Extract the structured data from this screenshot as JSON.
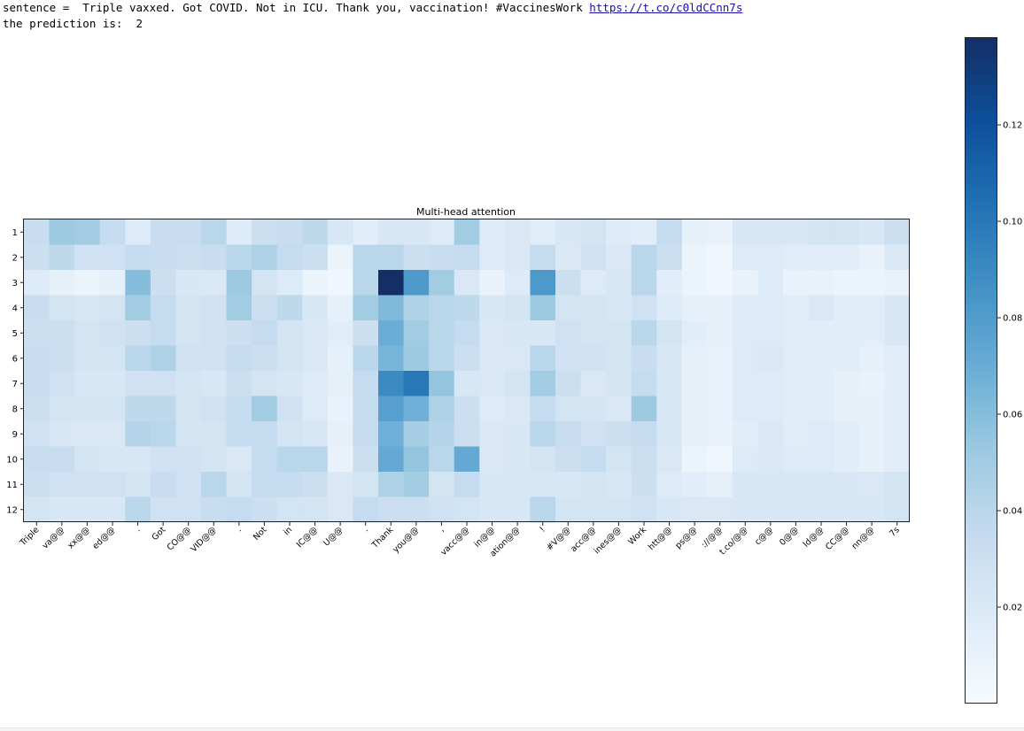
{
  "output": {
    "sentence_prefix": "sentence =  Triple vaxxed. Got COVID. Not in ICU. Thank you, vaccination! #VaccinesWork ",
    "sentence_link": "https://t.co/c0ldCCnn7s",
    "prediction_line": "the prediction is:  2"
  },
  "chart_data": {
    "type": "heatmap",
    "title": "Multi-head attention",
    "colormap": "Blues",
    "x_tokens": [
      "Triple",
      "va@@",
      "xx@@",
      "ed@@",
      ".",
      "Got",
      "CO@@",
      "VID@@",
      ".",
      "Not",
      "in",
      "IC@@",
      "U@@",
      ".",
      "Thank",
      "you@@",
      ",",
      "vacc@@",
      "in@@",
      "ation@@",
      "!",
      "#V@@",
      "acc@@",
      "ines@@",
      "Work",
      "htt@@",
      "ps@@",
      "://@@",
      "t.co/@@",
      "c@@",
      "0@@",
      "ld@@",
      "CC@@",
      "nn@@",
      "7s"
    ],
    "y_labels": [
      "1",
      "2",
      "3",
      "4",
      "5",
      "6",
      "7",
      "8",
      "9",
      "10",
      "11",
      "12"
    ],
    "vmin": 0.0,
    "vmax": 0.138,
    "colorbar_ticks": [
      0.02,
      0.04,
      0.06,
      0.08,
      0.1,
      0.12
    ],
    "colorbar_tick_labels": [
      "0.02",
      "0.04",
      "0.06",
      "0.08",
      "0.10",
      "0.12"
    ],
    "values": [
      [
        0.032,
        0.052,
        0.05,
        0.035,
        0.018,
        0.032,
        0.032,
        0.04,
        0.018,
        0.03,
        0.032,
        0.038,
        0.022,
        0.015,
        0.022,
        0.022,
        0.018,
        0.05,
        0.018,
        0.02,
        0.015,
        0.022,
        0.025,
        0.018,
        0.015,
        0.035,
        0.012,
        0.01,
        0.022,
        0.022,
        0.022,
        0.025,
        0.025,
        0.022,
        0.03
      ],
      [
        0.03,
        0.038,
        0.028,
        0.028,
        0.035,
        0.032,
        0.03,
        0.032,
        0.04,
        0.045,
        0.035,
        0.03,
        0.008,
        0.04,
        0.04,
        0.03,
        0.032,
        0.035,
        0.018,
        0.02,
        0.035,
        0.02,
        0.028,
        0.02,
        0.04,
        0.03,
        0.008,
        0.005,
        0.018,
        0.018,
        0.015,
        0.015,
        0.015,
        0.01,
        0.02
      ],
      [
        0.018,
        0.012,
        0.008,
        0.012,
        0.06,
        0.03,
        0.022,
        0.02,
        0.052,
        0.025,
        0.018,
        0.008,
        0.005,
        0.04,
        0.138,
        0.082,
        0.05,
        0.02,
        0.01,
        0.018,
        0.082,
        0.03,
        0.018,
        0.022,
        0.04,
        0.015,
        0.008,
        0.005,
        0.01,
        0.018,
        0.01,
        0.01,
        0.008,
        0.008,
        0.01
      ],
      [
        0.032,
        0.025,
        0.022,
        0.025,
        0.05,
        0.035,
        0.025,
        0.028,
        0.05,
        0.03,
        0.038,
        0.022,
        0.012,
        0.05,
        0.062,
        0.045,
        0.04,
        0.038,
        0.022,
        0.025,
        0.052,
        0.025,
        0.025,
        0.022,
        0.028,
        0.018,
        0.012,
        0.012,
        0.018,
        0.018,
        0.015,
        0.02,
        0.015,
        0.015,
        0.022
      ],
      [
        0.03,
        0.03,
        0.025,
        0.028,
        0.03,
        0.035,
        0.025,
        0.028,
        0.03,
        0.035,
        0.025,
        0.02,
        0.015,
        0.03,
        0.07,
        0.05,
        0.04,
        0.035,
        0.02,
        0.022,
        0.022,
        0.028,
        0.025,
        0.025,
        0.04,
        0.025,
        0.015,
        0.012,
        0.018,
        0.018,
        0.015,
        0.015,
        0.015,
        0.015,
        0.022
      ],
      [
        0.032,
        0.03,
        0.025,
        0.025,
        0.04,
        0.045,
        0.028,
        0.028,
        0.035,
        0.03,
        0.025,
        0.02,
        0.012,
        0.04,
        0.065,
        0.052,
        0.04,
        0.03,
        0.02,
        0.02,
        0.04,
        0.028,
        0.028,
        0.025,
        0.032,
        0.022,
        0.012,
        0.01,
        0.018,
        0.02,
        0.015,
        0.015,
        0.015,
        0.012,
        0.015
      ],
      [
        0.032,
        0.028,
        0.022,
        0.022,
        0.028,
        0.028,
        0.025,
        0.022,
        0.03,
        0.025,
        0.022,
        0.018,
        0.012,
        0.035,
        0.09,
        0.1,
        0.055,
        0.022,
        0.02,
        0.025,
        0.05,
        0.03,
        0.02,
        0.025,
        0.035,
        0.022,
        0.012,
        0.01,
        0.018,
        0.018,
        0.015,
        0.015,
        0.012,
        0.01,
        0.015
      ],
      [
        0.03,
        0.025,
        0.025,
        0.025,
        0.038,
        0.038,
        0.025,
        0.028,
        0.035,
        0.05,
        0.028,
        0.018,
        0.01,
        0.035,
        0.078,
        0.068,
        0.045,
        0.03,
        0.018,
        0.02,
        0.035,
        0.025,
        0.025,
        0.02,
        0.052,
        0.022,
        0.012,
        0.01,
        0.018,
        0.018,
        0.015,
        0.015,
        0.012,
        0.012,
        0.015
      ],
      [
        0.028,
        0.022,
        0.02,
        0.02,
        0.042,
        0.04,
        0.025,
        0.025,
        0.035,
        0.035,
        0.025,
        0.022,
        0.012,
        0.035,
        0.068,
        0.048,
        0.042,
        0.03,
        0.02,
        0.022,
        0.04,
        0.032,
        0.028,
        0.03,
        0.035,
        0.022,
        0.012,
        0.01,
        0.015,
        0.02,
        0.015,
        0.018,
        0.015,
        0.012,
        0.015
      ],
      [
        0.032,
        0.032,
        0.025,
        0.022,
        0.022,
        0.028,
        0.028,
        0.025,
        0.02,
        0.035,
        0.04,
        0.04,
        0.01,
        0.03,
        0.072,
        0.055,
        0.04,
        0.072,
        0.02,
        0.022,
        0.025,
        0.03,
        0.035,
        0.025,
        0.03,
        0.02,
        0.008,
        0.005,
        0.018,
        0.02,
        0.018,
        0.018,
        0.015,
        0.012,
        0.015
      ],
      [
        0.03,
        0.028,
        0.028,
        0.028,
        0.025,
        0.032,
        0.028,
        0.04,
        0.025,
        0.035,
        0.035,
        0.03,
        0.02,
        0.025,
        0.045,
        0.05,
        0.025,
        0.035,
        0.022,
        0.022,
        0.022,
        0.022,
        0.025,
        0.022,
        0.03,
        0.018,
        0.015,
        0.012,
        0.022,
        0.022,
        0.022,
        0.022,
        0.022,
        0.02,
        0.025
      ],
      [
        0.025,
        0.022,
        0.022,
        0.022,
        0.04,
        0.028,
        0.028,
        0.032,
        0.035,
        0.03,
        0.025,
        0.025,
        0.02,
        0.035,
        0.03,
        0.03,
        0.028,
        0.025,
        0.022,
        0.022,
        0.04,
        0.025,
        0.025,
        0.025,
        0.028,
        0.022,
        0.02,
        0.02,
        0.022,
        0.022,
        0.022,
        0.022,
        0.022,
        0.022,
        0.025
      ]
    ]
  }
}
